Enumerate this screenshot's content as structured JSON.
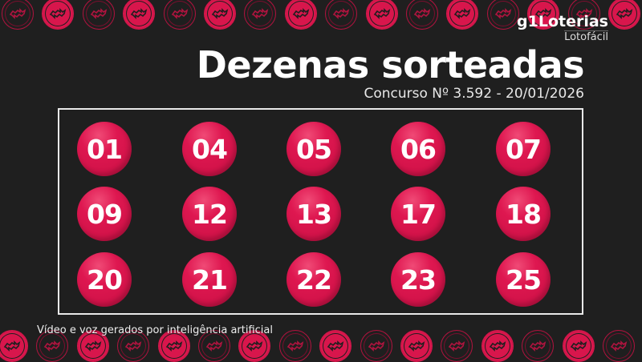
{
  "header": {
    "brand": "g1Loterias",
    "game": "Lotofácil",
    "title": "Dezenas sorteadas",
    "contest": "Concurso Nº 3.592 - 20/01/2026"
  },
  "numbers": [
    "01",
    "04",
    "05",
    "06",
    "07",
    "09",
    "12",
    "13",
    "17",
    "18",
    "20",
    "21",
    "22",
    "23",
    "25"
  ],
  "footer": {
    "disclaimer": "Vídeo e voz gerados por inteligência artificial"
  },
  "decor": {
    "icon": "money-coin-icon",
    "accent_color": "#d8164c",
    "background_color": "#1f1f1f"
  }
}
